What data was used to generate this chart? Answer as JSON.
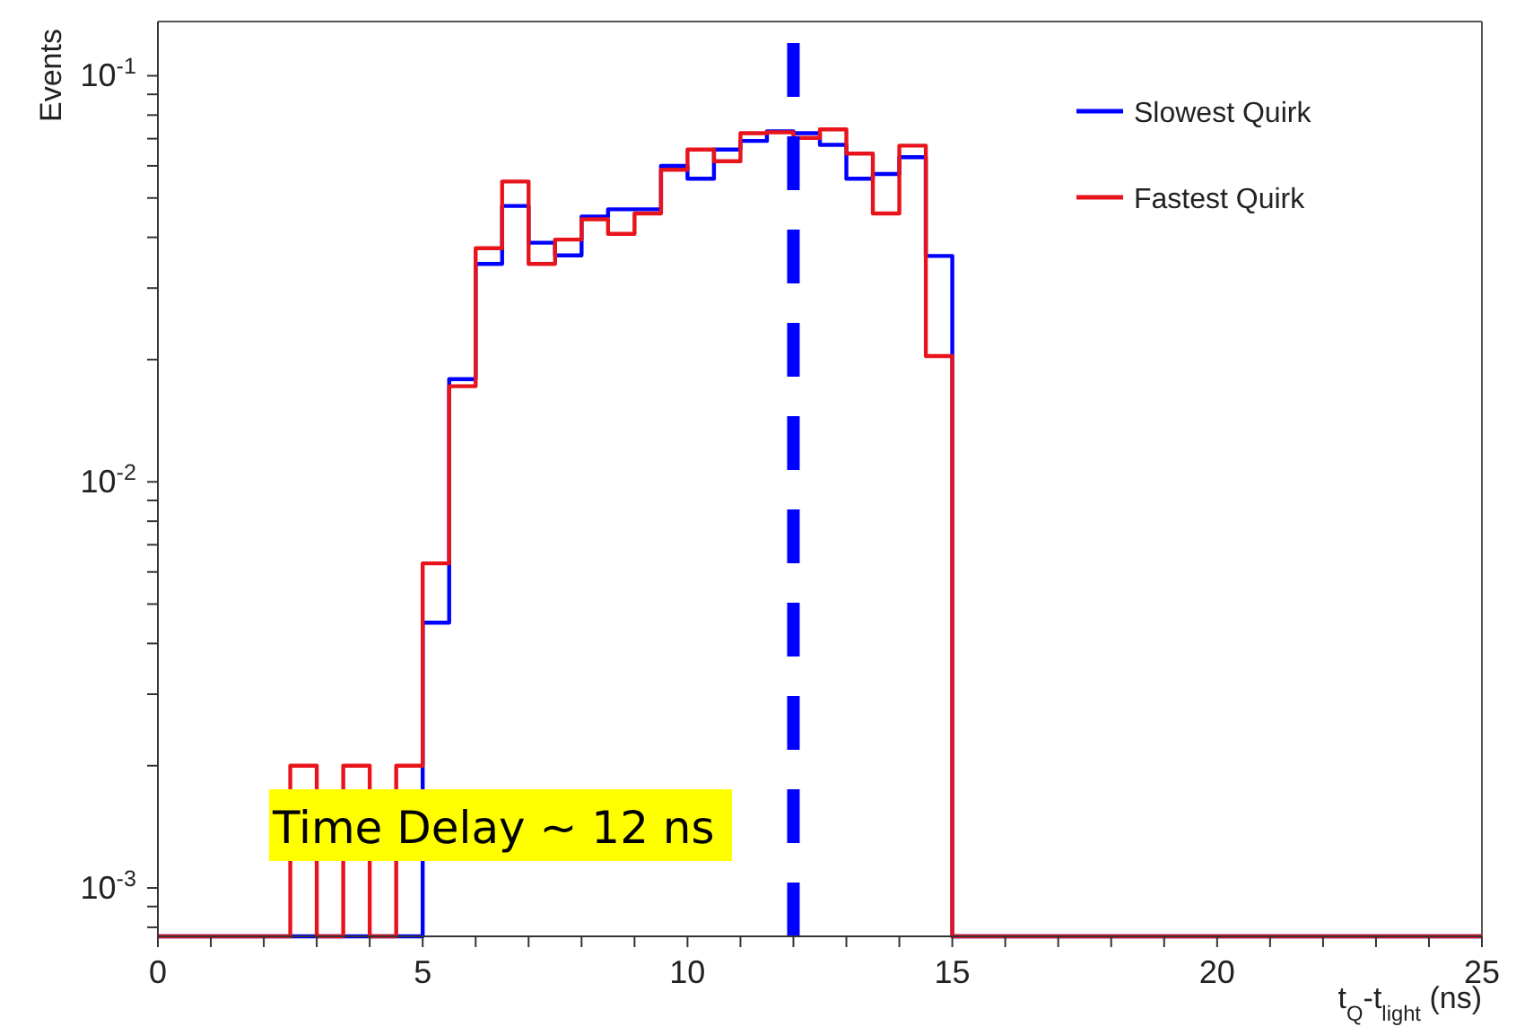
{
  "chart_data": {
    "type": "histogram",
    "xlabel": "t$_{Q}$-t$_{light}$ (ns)",
    "ylabel": "Events",
    "bins": [
      0,
      0.5,
      1,
      1.5,
      2,
      2.5,
      3,
      3.5,
      4,
      4.5,
      5,
      5.5,
      6,
      6.5,
      7,
      7.5,
      8,
      8.5,
      9,
      9.5,
      10,
      10.5,
      11,
      11.5,
      12,
      12.5,
      13,
      13.5,
      14,
      14.5,
      15,
      15.5,
      16,
      16.5,
      17,
      17.5,
      18,
      18.5,
      19,
      19.5,
      20,
      20.5,
      21,
      21.5,
      22,
      22.5,
      23,
      23.5,
      24,
      24.5,
      25
    ],
    "series": [
      {
        "name": "Slowest Quirk",
        "color": "#0000ff",
        "values": [
          null,
          null,
          null,
          null,
          null,
          null,
          null,
          null,
          null,
          null,
          0.0045,
          0.0179,
          0.0344,
          0.0478,
          0.0388,
          0.0361,
          0.045,
          0.0469,
          0.0469,
          0.06,
          0.0558,
          0.0658,
          0.0691,
          0.073,
          0.0722,
          0.0676,
          0.0558,
          0.0573,
          0.063,
          0.036,
          null,
          null,
          null,
          null,
          null,
          null,
          null,
          null,
          null,
          null,
          null,
          null,
          null,
          null,
          null,
          null,
          null,
          null,
          null,
          null
        ]
      },
      {
        "name": "Fastest Quirk",
        "color": "#e8141c",
        "values": [
          null,
          null,
          null,
          null,
          null,
          0.002,
          null,
          0.002,
          null,
          0.002,
          0.0063,
          0.0172,
          0.0376,
          0.0549,
          0.0344,
          0.0395,
          0.0443,
          0.0408,
          0.0458,
          0.0587,
          0.0658,
          0.0616,
          0.0722,
          0.0726,
          0.0703,
          0.0738,
          0.0643,
          0.0458,
          0.0673,
          0.0204,
          null,
          null,
          null,
          null,
          null,
          null,
          null,
          null,
          null,
          null,
          null,
          null,
          null,
          null,
          null,
          null,
          null,
          null,
          null,
          null
        ]
      }
    ],
    "xlim": [
      0,
      25
    ],
    "xticks": [
      0,
      {
        "value": 1,
        "label": null
      },
      {
        "value": 2,
        "label": null
      },
      {
        "value": 3,
        "label": null
      },
      {
        "value": 4,
        "label": null
      },
      5,
      {
        "value": 6,
        "label": null
      },
      {
        "value": 7,
        "label": null
      },
      {
        "value": 8,
        "label": null
      },
      {
        "value": 9,
        "label": null
      },
      10,
      {
        "value": 11,
        "label": null
      },
      {
        "value": 12,
        "label": null
      },
      {
        "value": 13,
        "label": null
      },
      {
        "value": 14,
        "label": null
      },
      15,
      {
        "value": 16,
        "label": null
      },
      {
        "value": 17,
        "label": null
      },
      {
        "value": 18,
        "label": null
      },
      {
        "value": 19,
        "label": null
      },
      20,
      {
        "value": 21,
        "label": null
      },
      {
        "value": 22,
        "label": null
      },
      {
        "value": 23,
        "label": null
      },
      {
        "value": 24,
        "label": null
      },
      25
    ],
    "ylim": [
      0.00076,
      0.136
    ],
    "log": "y",
    "yticks": [
      {
        "value": 0.0008,
        "label": null
      },
      {
        "value": 0.0009,
        "label": null
      },
      {
        "value": 0.001,
        "label": "10$^{-3}$"
      },
      {
        "value": 0.002,
        "label": null
      },
      {
        "value": 0.003,
        "label": null
      },
      {
        "value": 0.004,
        "label": null
      },
      {
        "value": 0.005,
        "label": null
      },
      {
        "value": 0.006,
        "label": null
      },
      {
        "value": 0.007,
        "label": null
      },
      {
        "value": 0.008,
        "label": null
      },
      {
        "value": 0.009,
        "label": null
      },
      {
        "value": 0.01,
        "label": "10$^{-2}$"
      },
      {
        "value": 0.02,
        "label": null
      },
      {
        "value": 0.03,
        "label": null
      },
      {
        "value": 0.04,
        "label": null
      },
      {
        "value": 0.05,
        "label": null
      },
      {
        "value": 0.06,
        "label": null
      },
      {
        "value": 0.07,
        "label": null
      },
      {
        "value": 0.08,
        "label": null
      },
      {
        "value": 0.09,
        "label": null
      },
      {
        "value": 0.1,
        "label": "10$^{-1}$"
      }
    ],
    "ref_lines": [
      {
        "axis": "x",
        "value": 12,
        "color": "#0000ff",
        "line_style": "dashed"
      }
    ],
    "annotations": [
      "Time Delay ~ 12 ns"
    ],
    "legend": "top right",
    "grid": false
  }
}
